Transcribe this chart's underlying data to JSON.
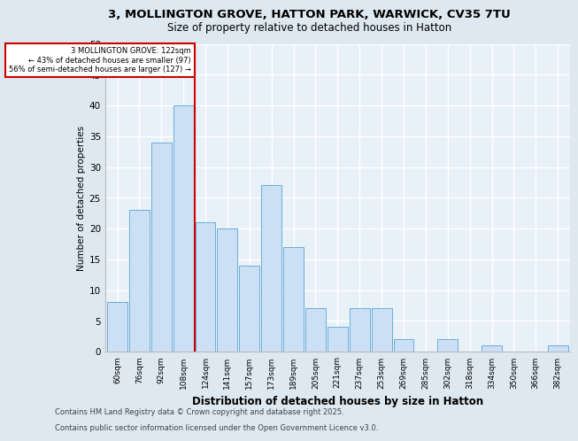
{
  "title1": "3, MOLLINGTON GROVE, HATTON PARK, WARWICK, CV35 7TU",
  "title2": "Size of property relative to detached houses in Hatton",
  "xlabel": "Distribution of detached houses by size in Hatton",
  "ylabel": "Number of detached properties",
  "categories": [
    "60sqm",
    "76sqm",
    "92sqm",
    "108sqm",
    "124sqm",
    "141sqm",
    "157sqm",
    "173sqm",
    "189sqm",
    "205sqm",
    "221sqm",
    "237sqm",
    "253sqm",
    "269sqm",
    "285sqm",
    "302sqm",
    "318sqm",
    "334sqm",
    "350sqm",
    "366sqm",
    "382sqm"
  ],
  "values": [
    8,
    23,
    34,
    40,
    21,
    20,
    14,
    27,
    17,
    7,
    4,
    7,
    7,
    2,
    0,
    2,
    0,
    1,
    0,
    0,
    1
  ],
  "bar_color": "#cce0f5",
  "bar_edge_color": "#6aaed6",
  "vline_x": 3.5,
  "annotation_line1": "3 MOLLINGTON GROVE: 122sqm",
  "annotation_line2": "← 43% of detached houses are smaller (97)",
  "annotation_line3": "56% of semi-detached houses are larger (127) →",
  "annotation_box_color": "#ffffff",
  "annotation_box_edge": "#cc0000",
  "ylim": [
    0,
    50
  ],
  "yticks": [
    0,
    5,
    10,
    15,
    20,
    25,
    30,
    35,
    40,
    45,
    50
  ],
  "bg_color": "#dde8f0",
  "plot_bg_color": "#e8f0f8",
  "grid_color": "#ffffff",
  "footer1": "Contains HM Land Registry data © Crown copyright and database right 2025.",
  "footer2": "Contains public sector information licensed under the Open Government Licence v3.0."
}
